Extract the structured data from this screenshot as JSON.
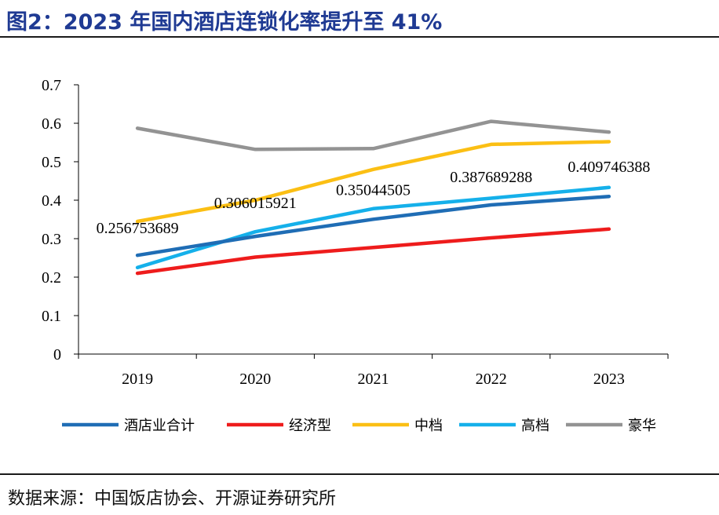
{
  "header": {
    "title": "图2：2023 年国内酒店连锁化率提升至 41%"
  },
  "footer": {
    "source": "数据来源：中国饭店协会、开源证券研究所"
  },
  "chart_data": {
    "type": "line",
    "title": "",
    "xlabel": "",
    "ylabel": "",
    "categories": [
      "2019",
      "2020",
      "2021",
      "2022",
      "2023"
    ],
    "ylim": [
      0,
      0.7
    ],
    "yticks": [
      "0",
      "0.1",
      "0.2",
      "0.3",
      "0.4",
      "0.5",
      "0.6",
      "0.7"
    ],
    "grid": false,
    "legend_position": "bottom",
    "series": [
      {
        "name": "酒店业合计",
        "color": "#1f6db5",
        "values": [
          0.256753689,
          0.306015921,
          0.35044505,
          0.387689288,
          0.409746388
        ]
      },
      {
        "name": "经济型",
        "color": "#ee1c1c",
        "values": [
          0.21,
          0.252,
          0.277,
          0.302,
          0.325
        ]
      },
      {
        "name": "中档",
        "color": "#fbbf14",
        "values": [
          0.345,
          0.4,
          0.48,
          0.545,
          0.552
        ]
      },
      {
        "name": "高档",
        "color": "#15b0ea",
        "values": [
          0.225,
          0.318,
          0.378,
          0.405,
          0.433
        ]
      },
      {
        "name": "豪华",
        "color": "#939393",
        "values": [
          0.587,
          0.532,
          0.534,
          0.605,
          0.577
        ]
      }
    ],
    "data_labels": [
      "0.256753689",
      "0.306015921",
      "0.35044505",
      "0.387689288",
      "0.409746388"
    ]
  }
}
